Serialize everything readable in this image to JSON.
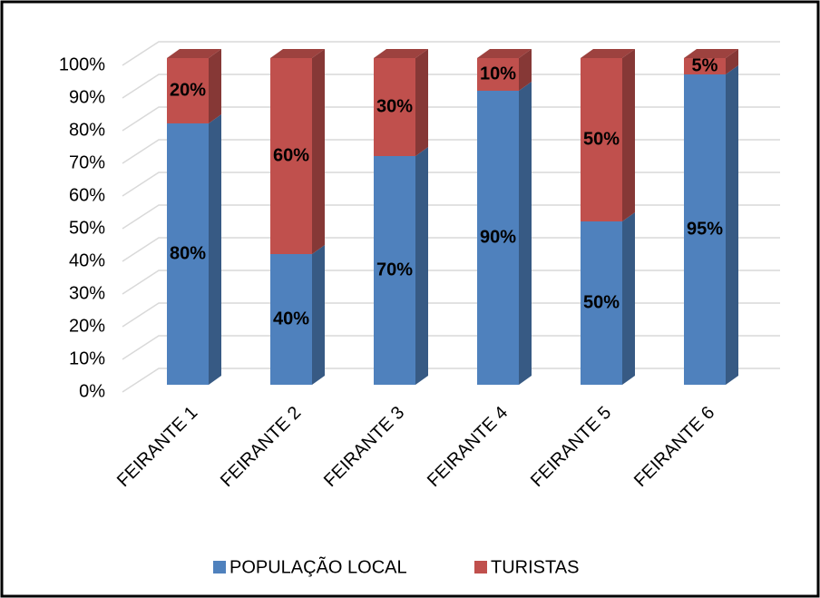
{
  "chart_data": {
    "type": "bar3d_stacked",
    "categories": [
      "FEIRANTE 1",
      "FEIRANTE 2",
      "FEIRANTE 3",
      "FEIRANTE 4",
      "FEIRANTE 5",
      "FEIRANTE 6"
    ],
    "series": [
      {
        "name": "POPULAÇÃO LOCAL",
        "color": "#4f81bd",
        "values": [
          80,
          40,
          70,
          90,
          50,
          95
        ],
        "value_labels": [
          "80%",
          "40%",
          "70%",
          "90%",
          "50%",
          "95%"
        ]
      },
      {
        "name": "TURISTAS",
        "color": "#c0504d",
        "values": [
          20,
          60,
          30,
          10,
          50,
          5
        ],
        "value_labels": [
          "20%",
          "60%",
          "30%",
          "10%",
          "50%",
          "5%"
        ]
      }
    ],
    "ylim": [
      0,
      100
    ],
    "yticks": [
      {
        "value": 0,
        "label": "0%"
      },
      {
        "value": 10,
        "label": "10%"
      },
      {
        "value": 20,
        "label": "20%"
      },
      {
        "value": 30,
        "label": "30%"
      },
      {
        "value": 40,
        "label": "40%"
      },
      {
        "value": 50,
        "label": "50%"
      },
      {
        "value": 60,
        "label": "60%"
      },
      {
        "value": 70,
        "label": "70%"
      },
      {
        "value": 80,
        "label": "80%"
      },
      {
        "value": 90,
        "label": "90%"
      },
      {
        "value": 100,
        "label": "100%"
      }
    ],
    "grid": true,
    "legend": "bottom"
  }
}
